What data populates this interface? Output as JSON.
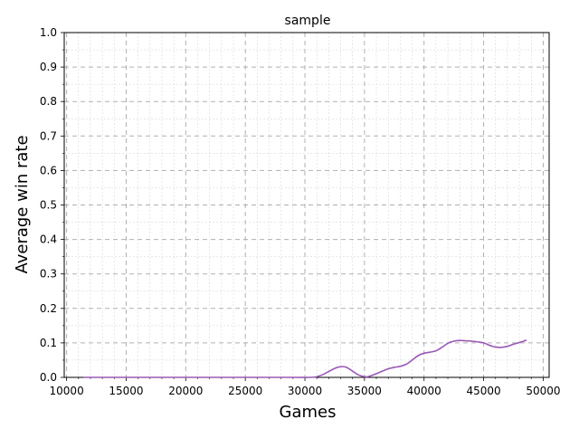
{
  "chart_data": {
    "type": "line",
    "title": "sample",
    "xlabel": "Games",
    "ylabel": "Average win rate",
    "xlim": [
      9800,
      50500
    ],
    "ylim": [
      0.0,
      1.0
    ],
    "x_ticks": [
      10000,
      15000,
      20000,
      25000,
      30000,
      35000,
      40000,
      45000,
      50000
    ],
    "y_ticks": [
      0.0,
      0.1,
      0.2,
      0.3,
      0.4,
      0.5,
      0.6,
      0.7,
      0.8,
      0.9,
      1.0
    ],
    "x_tick_labels": [
      "10000",
      "15000",
      "20000",
      "25000",
      "30000",
      "35000",
      "40000",
      "45000",
      "50000"
    ],
    "y_tick_labels": [
      "0.0",
      "0.1",
      "0.2",
      "0.3",
      "0.4",
      "0.5",
      "0.6",
      "0.7",
      "0.8",
      "0.9",
      "1.0"
    ],
    "grid": true,
    "minor_grid": true,
    "series": [
      {
        "color": "#9b59b6",
        "x": [
          11400,
          15000,
          20000,
          25000,
          29000,
          30500,
          31000,
          31500,
          32000,
          32500,
          33000,
          33500,
          34000,
          34500,
          35000,
          35300,
          35800,
          36500,
          37000,
          37500,
          38000,
          38500,
          39000,
          39500,
          40000,
          40500,
          41000,
          41500,
          42000,
          42500,
          43000,
          43500,
          44000,
          44500,
          45000,
          45500,
          46000,
          46500,
          47000,
          47500,
          48000,
          48600
        ],
        "y": [
          0.0,
          0.0,
          0.0,
          0.0,
          0.0,
          0.0,
          0.002,
          0.008,
          0.017,
          0.026,
          0.031,
          0.029,
          0.018,
          0.007,
          0.002,
          0.002,
          0.008,
          0.018,
          0.025,
          0.029,
          0.032,
          0.038,
          0.05,
          0.063,
          0.07,
          0.073,
          0.077,
          0.087,
          0.099,
          0.105,
          0.107,
          0.106,
          0.105,
          0.103,
          0.1,
          0.093,
          0.088,
          0.087,
          0.09,
          0.096,
          0.101,
          0.108
        ]
      }
    ]
  }
}
